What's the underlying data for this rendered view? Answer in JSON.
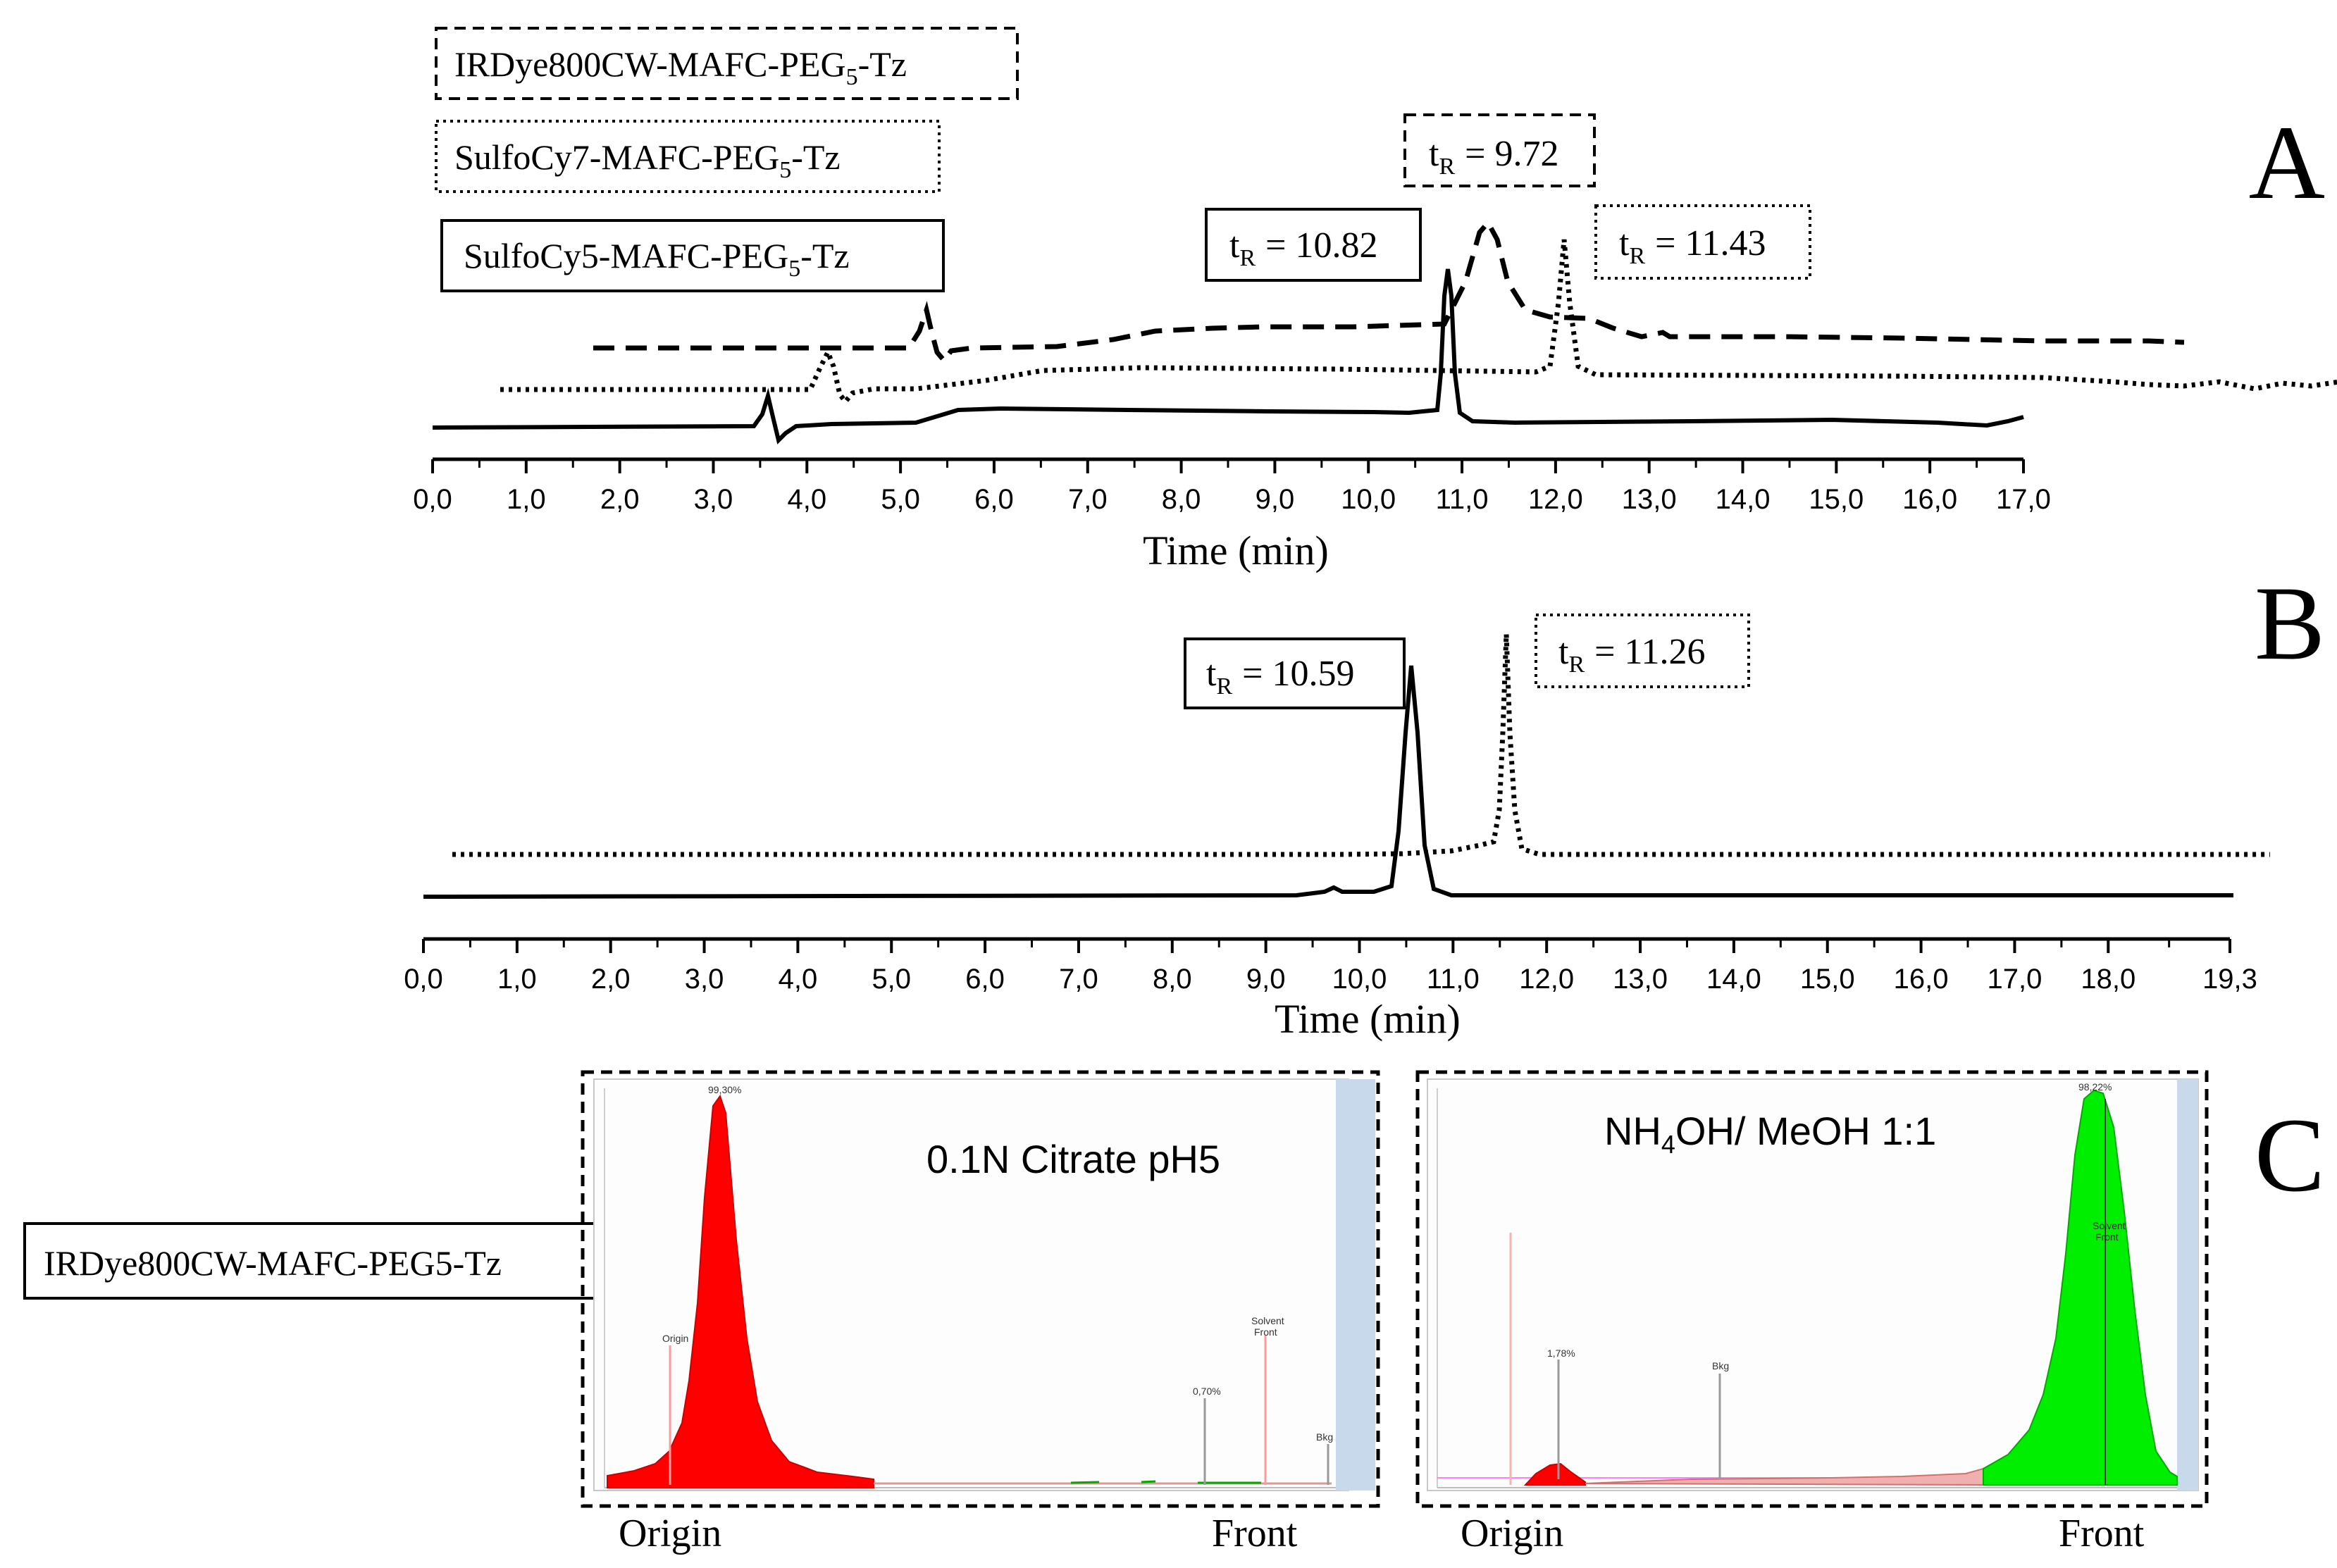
{
  "panels": {
    "A": "A",
    "B": "B",
    "C": "C"
  },
  "tR_prefix": "t",
  "tR_sub": "R",
  "legend": [
    {
      "pre": "IRDye800CW-MAFC-PEG",
      "sub": "5",
      "post": "-Tz",
      "style": "dashed"
    },
    {
      "pre": "SulfoCy7-MAFC-PEG",
      "sub": "5",
      "post": "-Tz",
      "style": "dotted"
    },
    {
      "pre": "SulfoCy5-MAFC-PEG",
      "sub": "5",
      "post": "-Tz",
      "style": "solid"
    }
  ],
  "chart_data": [
    {
      "type": "line",
      "panel": "A",
      "title": "",
      "xlabel": "Time (min)",
      "ylabel": "",
      "xlim": [
        0,
        17.0
      ],
      "x_tick_labels": [
        "0,0",
        "1,0",
        "2,0",
        "3,0",
        "4,0",
        "5,0",
        "6,0",
        "7,0",
        "8,0",
        "9,0",
        "10,0",
        "11,0",
        "12,0",
        "13,0",
        "14,0",
        "15,0",
        "16,0",
        "17,0"
      ],
      "series": [
        {
          "name": "IRDye800CW-MAFC-PEG5-Tz",
          "style": "dashed",
          "retention_time_label": "= 9.72",
          "retention_time": 9.72
        },
        {
          "name": "SulfoCy7-MAFC-PEG5-Tz",
          "style": "dotted",
          "retention_time_label": "= 11.43",
          "retention_time": 11.43
        },
        {
          "name": "SulfoCy5-MAFC-PEG5-Tz",
          "style": "solid",
          "retention_time_label": "= 10.82",
          "retention_time": 10.82
        }
      ]
    },
    {
      "type": "line",
      "panel": "B",
      "title": "",
      "xlabel": "Time (min)",
      "ylabel": "",
      "xlim": [
        0,
        19.3
      ],
      "x_tick_labels": [
        "0,0",
        "1,0",
        "2,0",
        "3,0",
        "4,0",
        "5,0",
        "6,0",
        "7,0",
        "8,0",
        "9,0",
        "10,0",
        "11,0",
        "12,0",
        "13,0",
        "14,0",
        "15,0",
        "16,0",
        "17,0",
        "18,0",
        "19,3"
      ],
      "series": [
        {
          "name": "solid trace",
          "style": "solid",
          "retention_time_label": "= 10.59",
          "retention_time": 10.59
        },
        {
          "name": "dotted trace",
          "style": "dotted",
          "retention_time_label": "= 11.26",
          "retention_time": 11.26
        }
      ]
    },
    {
      "type": "area",
      "panel": "C",
      "sample_label": "IRDye800CW-MAFC-PEG5-Tz",
      "plots": [
        {
          "solvent": {
            "pre": "0.1N Citrate pH5",
            "sub": "",
            "post": ""
          },
          "peak_color": "#ff0000",
          "peak_percent": "99,30%",
          "minor_percent": "0,70%",
          "marker_labels": [
            "Origin",
            "Solvent",
            "Front",
            "Bkg"
          ],
          "bottom_left": "Origin",
          "bottom_right": "Front"
        },
        {
          "solvent": {
            "pre": "NH",
            "sub": "4",
            "post": "OH/ MeOH 1:1"
          },
          "peak_color": "#00ee00",
          "peak_percent": "98,22%",
          "minor_percent": "1,78%",
          "marker_labels": [
            "Bkg",
            "Solvent",
            "Front"
          ],
          "bottom_left": "Origin",
          "bottom_right": "Front"
        }
      ]
    }
  ],
  "colors": {
    "red_peak": "#ff0000",
    "green_peak": "#00ee00",
    "shade": "#c7d9ea",
    "ink": "#000000"
  }
}
